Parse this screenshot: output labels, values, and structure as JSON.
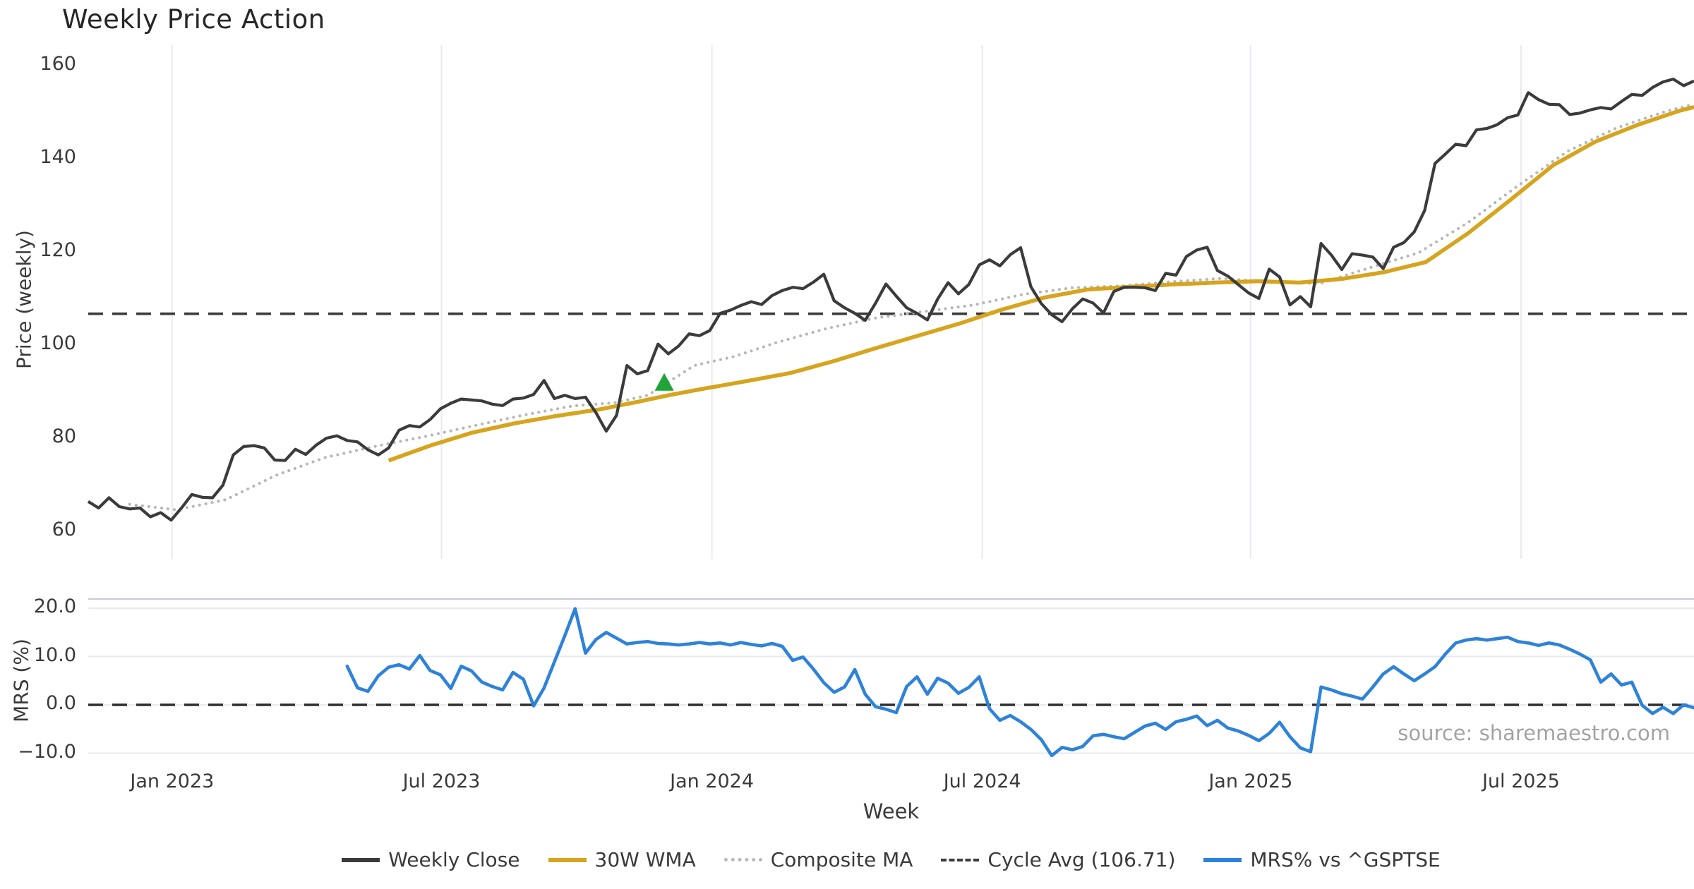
{
  "title": "Weekly Price Action",
  "source_note": "source: sharemaestro.com",
  "colors": {
    "weekly_close": "#3b3b3b",
    "wma30": "#D6A41E",
    "composite": "#b8b8b8",
    "cycle_avg": "#3b3b3b",
    "mrs": "#2E82D9",
    "signal": "#1FA437",
    "grid": "#e9e9f1",
    "spine": "#c9c9d2"
  },
  "legend": [
    {
      "label": "Weekly Close",
      "color": "#3b3b3b",
      "style": "solid"
    },
    {
      "label": "30W WMA",
      "color": "#D6A41E",
      "style": "solid"
    },
    {
      "label": "Composite MA",
      "color": "#b8b8b8",
      "style": "dotted"
    },
    {
      "label": "Cycle Avg (106.71)",
      "color": "#3b3b3b",
      "style": "dashed"
    },
    {
      "label": "MRS% vs ^GSPTSE",
      "color": "#2E82D9",
      "style": "solid"
    }
  ],
  "chart_data": [
    {
      "type": "line",
      "panel": "price",
      "title": "Weekly Price Action",
      "ylabel": "Price (weekly)",
      "ylim": [
        54,
        164
      ],
      "yticks": [
        "160",
        "140",
        "120",
        "100",
        "80",
        "60"
      ],
      "ytick_values": [
        160,
        140,
        120,
        100,
        80,
        60
      ],
      "x_ticks": [
        {
          "label": "Jan 2023",
          "week": 8.1
        },
        {
          "label": "Jul 2023",
          "week": 34.1
        },
        {
          "label": "Jan 2024",
          "week": 60.2
        },
        {
          "label": "Jul 2024",
          "week": 86.3
        },
        {
          "label": "Jan 2025",
          "week": 112.2
        },
        {
          "label": "Jul 2025",
          "week": 138.3
        }
      ],
      "grid": "vertical-only",
      "cycle_avg_value": 106.71,
      "signal_marker": {
        "week": 55.6,
        "price": 92.0,
        "shape": "triangle-up",
        "color": "#1FA437"
      },
      "series": [
        {
          "name": "Weekly Close",
          "style": "solid",
          "color": "#3b3b3b",
          "start_week": 0,
          "values": [
            66.4,
            65.0,
            67.2,
            65.3,
            64.8,
            65.0,
            63.1,
            64.0,
            62.4,
            65.0,
            67.9,
            67.3,
            67.2,
            69.9,
            76.4,
            78.2,
            78.4,
            77.9,
            75.3,
            75.2,
            77.6,
            76.5,
            78.5,
            80.0,
            80.5,
            79.5,
            79.2,
            77.5,
            76.4,
            77.9,
            81.7,
            82.7,
            82.4,
            84.0,
            86.3,
            87.5,
            88.4,
            88.2,
            88.0,
            87.3,
            87.0,
            88.4,
            88.6,
            89.4,
            92.4,
            88.5,
            89.2,
            88.5,
            88.8,
            85.5,
            81.5,
            84.9,
            95.6,
            93.8,
            94.5,
            100.2,
            98.1,
            99.8,
            102.4,
            102.0,
            103.1,
            106.8,
            107.5,
            108.5,
            109.3,
            108.7,
            110.6,
            111.7,
            112.4,
            112.1,
            113.5,
            115.2,
            109.5,
            108.0,
            106.8,
            105.3,
            109.0,
            113.1,
            110.5,
            108.0,
            106.8,
            105.4,
            109.9,
            113.4,
            111.0,
            113.0,
            117.2,
            118.3,
            117.0,
            119.4,
            120.9,
            112.5,
            108.9,
            106.5,
            105.0,
            107.8,
            109.9,
            109.0,
            106.9,
            111.5,
            112.4,
            112.4,
            112.3,
            111.7,
            115.4,
            115.0,
            119.0,
            120.4,
            121.0,
            116.0,
            114.8,
            113.0,
            111.2,
            110.0,
            116.3,
            114.6,
            108.6,
            110.4,
            108.2,
            121.8,
            119.3,
            116.2,
            119.6,
            119.3,
            118.9,
            116.4,
            121.0,
            122.0,
            124.3,
            128.9,
            139.0,
            141.0,
            143.1,
            142.8,
            146.2,
            146.5,
            147.3,
            148.8,
            149.4,
            154.2,
            152.7,
            151.7,
            151.6,
            149.5,
            149.8,
            150.5,
            151.0,
            150.7,
            152.3,
            153.8,
            153.6,
            155.3,
            156.5,
            157.1,
            155.7,
            156.7
          ]
        },
        {
          "name": "30W WMA",
          "style": "solid",
          "color": "#D6A41E",
          "points": [
            [
              29.0,
              75.2
            ],
            [
              33.0,
              78.4
            ],
            [
              37.1,
              81.2
            ],
            [
              41.2,
              83.2
            ],
            [
              45.3,
              84.8
            ],
            [
              49.4,
              86.2
            ],
            [
              52.8,
              87.7
            ],
            [
              56.2,
              89.3
            ],
            [
              59.6,
              90.7
            ],
            [
              63.7,
              92.3
            ],
            [
              67.8,
              94.0
            ],
            [
              71.9,
              96.5
            ],
            [
              76.0,
              99.3
            ],
            [
              80.1,
              102.0
            ],
            [
              84.1,
              104.6
            ],
            [
              88.2,
              107.6
            ],
            [
              92.3,
              110.2
            ],
            [
              96.4,
              111.9
            ],
            [
              100.5,
              112.5
            ],
            [
              104.6,
              113.0
            ],
            [
              108.7,
              113.4
            ],
            [
              112.8,
              113.7
            ],
            [
              116.9,
              113.4
            ],
            [
              121.0,
              114.2
            ],
            [
              125.0,
              115.6
            ],
            [
              129.1,
              117.8
            ],
            [
              133.2,
              124.0
            ],
            [
              137.3,
              131.2
            ],
            [
              141.4,
              138.6
            ],
            [
              145.5,
              143.7
            ],
            [
              149.6,
              147.3
            ],
            [
              153.6,
              150.3
            ],
            [
              155.0,
              151.1
            ]
          ]
        },
        {
          "name": "Composite MA",
          "style": "dotted",
          "color": "#b8b8b8",
          "points": [
            [
              4.0,
              65.8
            ],
            [
              8.5,
              64.6
            ],
            [
              13.3,
              66.8
            ],
            [
              18.1,
              72.0
            ],
            [
              22.8,
              75.8
            ],
            [
              27.6,
              78.2
            ],
            [
              32.4,
              80.3
            ],
            [
              37.1,
              82.6
            ],
            [
              41.9,
              84.9
            ],
            [
              46.7,
              86.9
            ],
            [
              50.8,
              87.6
            ],
            [
              54.0,
              89.2
            ],
            [
              58.5,
              95.6
            ],
            [
              62.3,
              97.5
            ],
            [
              66.4,
              100.5
            ],
            [
              71.2,
              103.5
            ],
            [
              76.0,
              105.8
            ],
            [
              80.7,
              107.2
            ],
            [
              85.5,
              108.6
            ],
            [
              90.3,
              110.9
            ],
            [
              95.0,
              112.3
            ],
            [
              99.8,
              112.7
            ],
            [
              104.6,
              113.6
            ],
            [
              109.4,
              114.3
            ],
            [
              114.1,
              113.5
            ],
            [
              118.9,
              113.2
            ],
            [
              123.7,
              116.6
            ],
            [
              128.4,
              119.8
            ],
            [
              133.2,
              126.3
            ],
            [
              138.0,
              134.2
            ],
            [
              142.8,
              141.6
            ],
            [
              147.5,
              146.6
            ],
            [
              152.3,
              150.2
            ],
            [
              155.0,
              151.7
            ]
          ]
        },
        {
          "name": "Cycle Avg (106.71)",
          "style": "dashed",
          "color": "#3b3b3b",
          "value": 106.71
        }
      ]
    },
    {
      "type": "line",
      "panel": "mrs",
      "ylabel": "MRS (%)",
      "xlabel": "Week",
      "ylim": [
        -12,
        21.5
      ],
      "yticks": [
        "20.0",
        "10.0",
        "0.0",
        "−10.0"
      ],
      "ytick_values": [
        20,
        10,
        0,
        -10
      ],
      "zero_line": 0,
      "grid": "horizontal-only",
      "series": [
        {
          "name": "MRS% vs ^GSPTSE",
          "style": "solid",
          "color": "#2E82D9",
          "start_week": 25,
          "values": [
            8.0,
            3.5,
            2.8,
            6.0,
            7.8,
            8.3,
            7.4,
            10.2,
            7.1,
            6.2,
            3.4,
            8.0,
            7.0,
            4.7,
            3.8,
            3.1,
            6.7,
            5.3,
            -0.2,
            3.5,
            8.9,
            14.3,
            19.9,
            10.7,
            13.5,
            15.0,
            13.8,
            12.6,
            12.9,
            13.1,
            12.7,
            12.6,
            12.4,
            12.6,
            12.9,
            12.6,
            12.8,
            12.4,
            12.9,
            12.5,
            12.2,
            12.7,
            12.1,
            9.2,
            9.9,
            7.4,
            4.6,
            2.6,
            3.7,
            7.3,
            2.2,
            -0.4,
            -0.9,
            -1.6,
            3.8,
            5.8,
            2.2,
            5.5,
            4.5,
            2.4,
            3.6,
            5.8,
            -0.8,
            -3.2,
            -2.2,
            -3.5,
            -5.1,
            -7.2,
            -10.5,
            -8.8,
            -9.3,
            -8.6,
            -6.4,
            -6.1,
            -6.6,
            -7.0,
            -5.7,
            -4.4,
            -3.8,
            -5.1,
            -3.5,
            -3.0,
            -2.3,
            -4.3,
            -3.2,
            -4.8,
            -5.4,
            -6.3,
            -7.4,
            -5.9,
            -3.6,
            -6.6,
            -8.9,
            -9.7,
            3.7,
            3.1,
            2.3,
            1.8,
            1.2,
            3.7,
            6.4,
            7.9,
            6.4,
            5.0,
            6.4,
            7.9,
            10.5,
            12.8,
            13.4,
            13.7,
            13.4,
            13.7,
            14.0,
            13.1,
            12.8,
            12.3,
            12.8,
            12.4,
            11.5,
            10.5,
            9.3,
            4.7,
            6.4,
            4.1,
            4.7,
            -0.1,
            -1.8,
            -0.5,
            -1.8,
            0.0,
            -0.6
          ]
        }
      ]
    }
  ]
}
